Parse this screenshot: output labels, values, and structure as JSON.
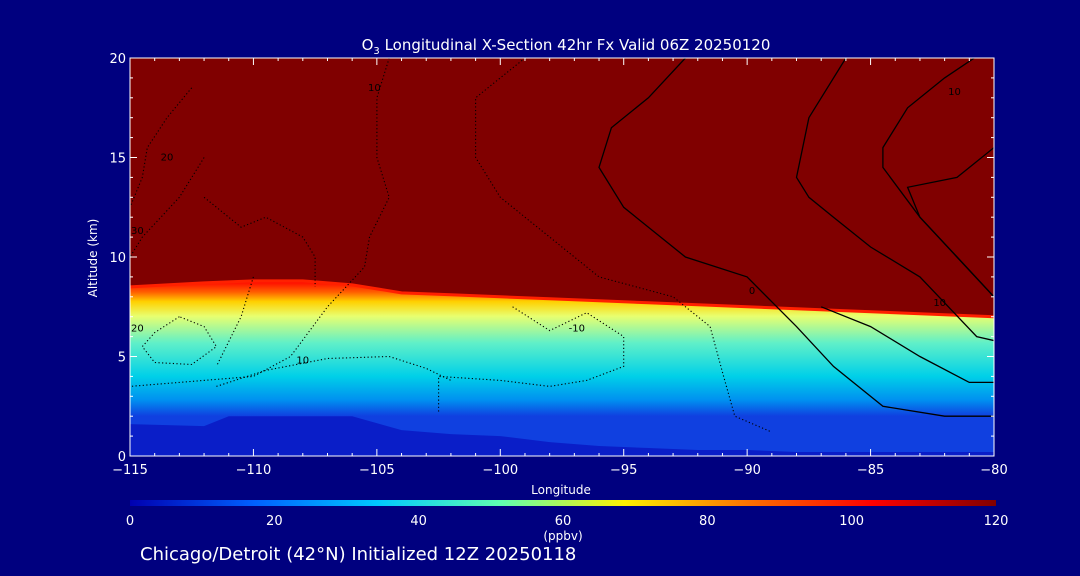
{
  "chart_data": {
    "type": "heatmap",
    "title_prefix": "O",
    "title_subscript": "3",
    "title_rest": " Longitudinal X-Section 42hr  Fx Valid 06Z 20250120",
    "xlabel": "Longitude",
    "ylabel": "Altitude (km)",
    "xlim": [
      -115,
      -80
    ],
    "ylim": [
      0,
      20
    ],
    "x_ticks": [
      -115,
      -110,
      -105,
      -100,
      -95,
      -90,
      -85,
      -80
    ],
    "x_tick_labels": [
      "−115",
      "−110",
      "−105",
      "−100",
      "−95",
      "−90",
      "−85",
      "−80"
    ],
    "y_ticks": [
      0,
      5,
      10,
      15,
      20
    ],
    "y_tick_labels": [
      "0",
      "5",
      "10",
      "15",
      "20"
    ],
    "colorbar": {
      "label": "(ppbv)",
      "range": [
        0,
        120
      ],
      "ticks": [
        0,
        20,
        40,
        60,
        80,
        100,
        120
      ],
      "tick_labels": [
        "0",
        "20",
        "40",
        "60",
        "80",
        "100",
        "120"
      ],
      "colors": [
        "#0000b0",
        "#0060ff",
        "#00c8ff",
        "#60ffb0",
        "#fff000",
        "#ff7000",
        "#ff0000",
        "#800000"
      ]
    },
    "tropopause_altitude": {
      "longitude": [
        -115,
        -112,
        -110,
        -108,
        -106,
        -104,
        -102,
        -100,
        -98,
        -96,
        -94,
        -92,
        -90,
        -88,
        -86,
        -84,
        -82,
        -80
      ],
      "altitude": [
        8.5,
        8.7,
        8.8,
        8.8,
        8.6,
        8.2,
        8.1,
        8.0,
        7.9,
        7.8,
        7.7,
        7.6,
        7.5,
        7.4,
        7.3,
        7.2,
        7.1,
        7.0
      ]
    },
    "surface_layer_top": {
      "longitude": [
        -115,
        -112,
        -111,
        -110,
        -108,
        -106,
        -104,
        -102,
        -100,
        -98,
        -96,
        -94,
        -92,
        -90,
        -88,
        -86,
        -84,
        -82,
        -80
      ],
      "altitude": [
        1.6,
        1.5,
        2.0,
        2.0,
        2.0,
        2.0,
        1.3,
        1.1,
        1.0,
        0.7,
        0.5,
        0.4,
        0.3,
        0.3,
        0.2,
        0.2,
        0.2,
        0.2,
        0.2
      ]
    },
    "contours": [
      {
        "value": "0",
        "style": "solid",
        "label_at": [
          -89.8,
          8.3
        ],
        "points": [
          [
            -92.5,
            20
          ],
          [
            -94,
            18
          ],
          [
            -95.5,
            16.5
          ],
          [
            -96,
            14.5
          ],
          [
            -95,
            12.5
          ],
          [
            -92.5,
            10
          ],
          [
            -90,
            9
          ],
          [
            -88,
            6.5
          ],
          [
            -86.5,
            4.5
          ],
          [
            -84.5,
            2.5
          ],
          [
            -82,
            2
          ],
          [
            -80,
            2
          ]
        ]
      },
      {
        "value": "10",
        "style": "solid",
        "label_at": [
          -82.2,
          7.7
        ],
        "points": [
          [
            -86,
            20
          ],
          [
            -87.5,
            17
          ],
          [
            -88,
            14
          ],
          [
            -87.5,
            13
          ],
          [
            -86.5,
            12
          ],
          [
            -85,
            10.5
          ],
          [
            -83,
            9
          ],
          [
            -82,
            7.7
          ],
          [
            -80.7,
            6
          ],
          [
            -80,
            5.8
          ]
        ]
      },
      {
        "value": "10",
        "style": "solid",
        "label_at": [
          -81.6,
          18.3
        ],
        "points": [
          [
            -80.8,
            20
          ],
          [
            -82,
            19
          ],
          [
            -83.5,
            17.5
          ],
          [
            -84.5,
            15.5
          ],
          [
            -84.5,
            14.5
          ],
          [
            -83,
            12
          ],
          [
            -81.5,
            10
          ],
          [
            -80,
            8
          ]
        ]
      },
      {
        "value": "",
        "style": "solid",
        "points": [
          [
            -80,
            15.5
          ],
          [
            -81.5,
            14
          ],
          [
            -83.5,
            13.5
          ],
          [
            -83,
            12
          ],
          [
            -81.5,
            10
          ],
          [
            -80,
            8
          ]
        ]
      },
      {
        "value": "",
        "style": "solid",
        "points": [
          [
            -87,
            7.5
          ],
          [
            -85,
            6.5
          ],
          [
            -83,
            5
          ],
          [
            -81,
            3.7
          ],
          [
            -80,
            3.7
          ]
        ]
      },
      {
        "value": "10",
        "style": "dotted",
        "label_at": [
          -105.1,
          18.5
        ],
        "points": [
          [
            -104.5,
            20
          ],
          [
            -105,
            18
          ],
          [
            -105,
            15
          ],
          [
            -104.5,
            13
          ],
          [
            -105.3,
            11
          ],
          [
            -105.5,
            9.5
          ],
          [
            -107,
            7.5
          ],
          [
            -108.5,
            5
          ],
          [
            -110,
            4
          ],
          [
            -115,
            3.5
          ]
        ]
      },
      {
        "value": "20",
        "style": "dotted",
        "label_at": [
          -113.5,
          15
        ],
        "points": [
          [
            -112.5,
            18.5
          ],
          [
            -113.5,
            17
          ],
          [
            -114.3,
            15.5
          ],
          [
            -114.5,
            14
          ],
          [
            -115,
            12.5
          ]
        ]
      },
      {
        "value": "30",
        "style": "dotted",
        "label_at": [
          -114.7,
          11.3
        ],
        "points": [
          [
            -112,
            15
          ],
          [
            -113,
            13
          ],
          [
            -114.5,
            11
          ],
          [
            -115,
            10
          ]
        ]
      },
      {
        "value": "20",
        "style": "dotted",
        "label_at": [
          -114.7,
          6.4
        ],
        "points": [
          [
            -113,
            7
          ],
          [
            -114,
            6.2
          ],
          [
            -114.5,
            5.5
          ],
          [
            -114,
            4.7
          ],
          [
            -112.5,
            4.6
          ],
          [
            -111.5,
            5.5
          ],
          [
            -112,
            6.5
          ],
          [
            -113,
            7
          ]
        ]
      },
      {
        "value": "10",
        "style": "dotted",
        "label_at": [
          -108,
          4.8
        ],
        "points": [
          [
            -111.5,
            3.5
          ],
          [
            -109.5,
            4.3
          ],
          [
            -107,
            4.9
          ],
          [
            -104.5,
            5.0
          ],
          [
            -103,
            4.4
          ],
          [
            -102,
            3.8
          ]
        ]
      },
      {
        "value": "-10",
        "style": "dotted",
        "label_at": [
          -96.9,
          6.4
        ],
        "points": [
          [
            -99.5,
            7.5
          ],
          [
            -98,
            6.3
          ],
          [
            -96.5,
            7.2
          ],
          [
            -95,
            6
          ],
          [
            -95,
            4.5
          ],
          [
            -96.5,
            3.8
          ],
          [
            -98,
            3.5
          ],
          [
            -100,
            3.8
          ],
          [
            -102.5,
            4
          ],
          [
            -102.5,
            2.2
          ]
        ]
      },
      {
        "value": "",
        "style": "dotted",
        "points": [
          [
            -99,
            20
          ],
          [
            -101,
            18
          ],
          [
            -101,
            15
          ],
          [
            -100,
            13
          ],
          [
            -98,
            11
          ],
          [
            -96,
            9
          ],
          [
            -93,
            8
          ],
          [
            -91.5,
            6.5
          ],
          [
            -91,
            4.2
          ],
          [
            -90.5,
            2
          ],
          [
            -89,
            1.2
          ]
        ]
      },
      {
        "value": "",
        "style": "dotted",
        "points": [
          [
            -110,
            9
          ],
          [
            -110.5,
            7
          ],
          [
            -111.5,
            4.5
          ]
        ]
      },
      {
        "value": "",
        "style": "dotted",
        "points": [
          [
            -112,
            13
          ],
          [
            -110.5,
            11.5
          ],
          [
            -109.5,
            12
          ],
          [
            -108,
            11
          ],
          [
            -107.5,
            10
          ],
          [
            -107.5,
            8.5
          ]
        ]
      }
    ]
  },
  "footer": {
    "station": "Chicago/Detroit (42°N) Initialized 12Z 20250118"
  }
}
